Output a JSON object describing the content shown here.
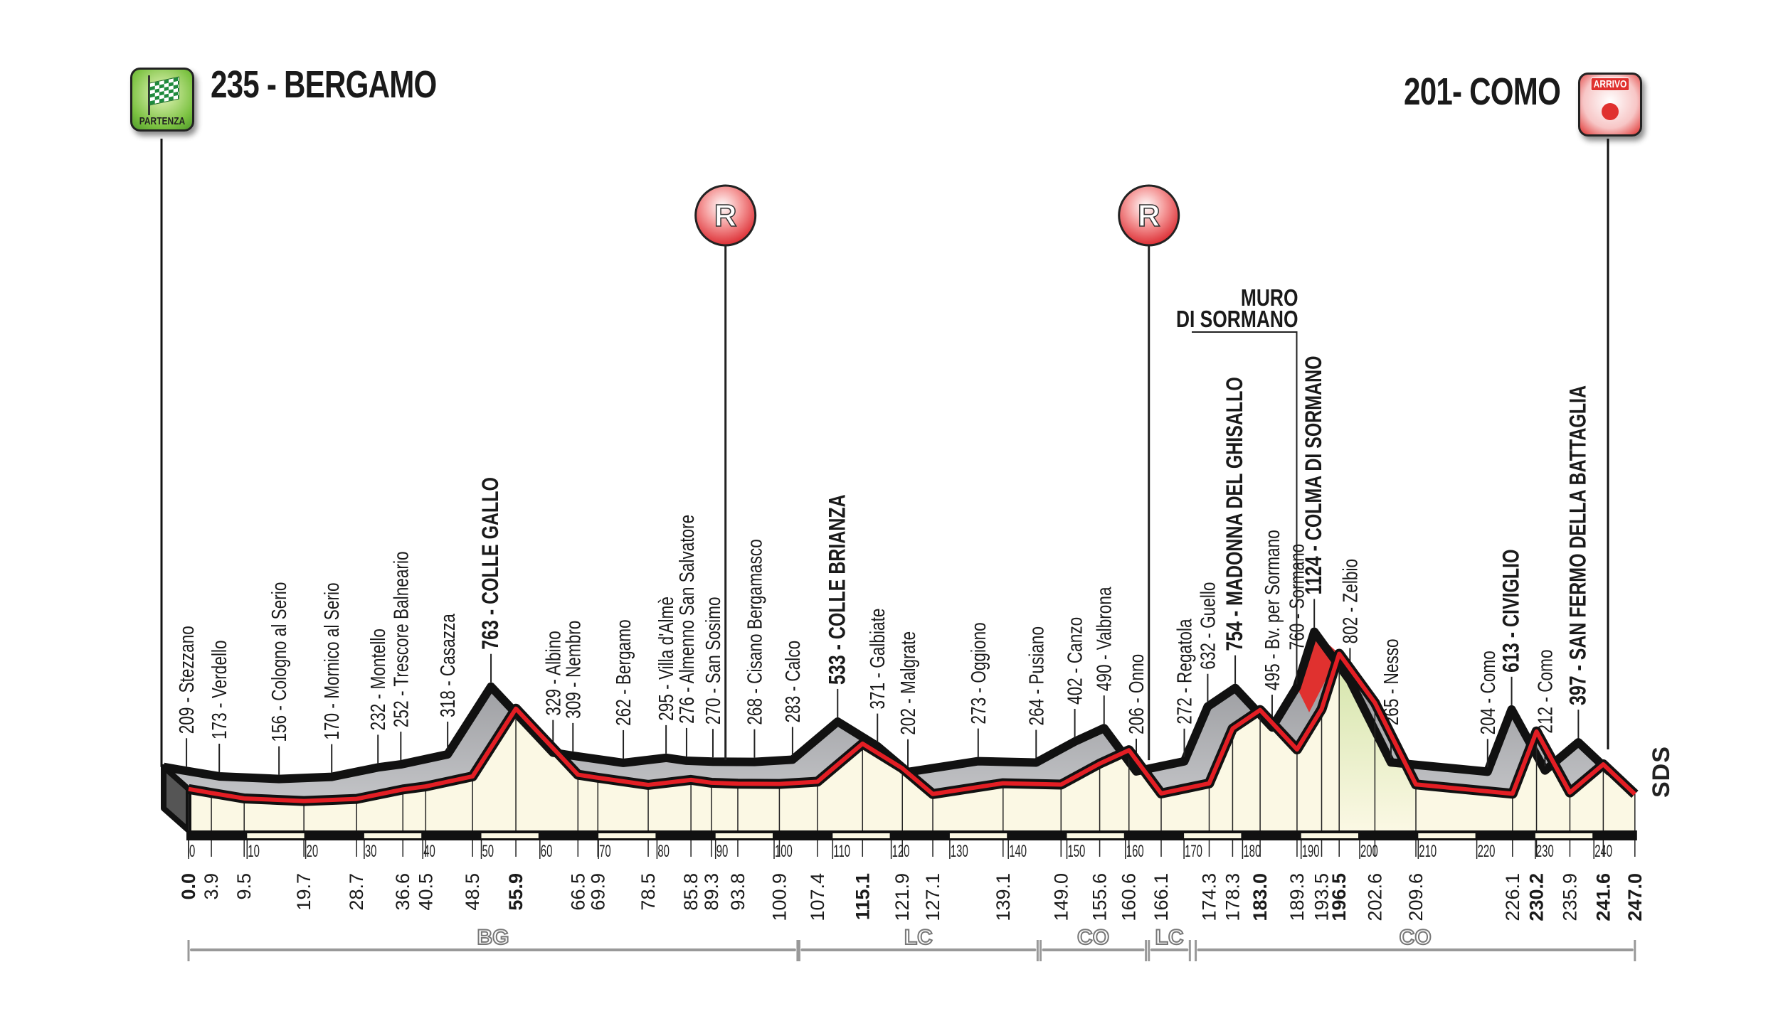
{
  "header": {
    "start_title": "235 - BERGAMO",
    "start_badge": "PARTENZA",
    "finish_title": "201- COMO",
    "finish_badge": "ARRIVO",
    "brand": "SDS"
  },
  "annotations": {
    "feed_zone_label": "R",
    "muro_line1": "MURO",
    "muro_line2": "DI SORMANO"
  },
  "colors": {
    "profile_line": "#e31e24",
    "band": "#a5a6aa",
    "ground": "#fbf8e4",
    "green_descent": "#d9e8b4",
    "feed_zone": "#e0312f"
  },
  "chart_data": {
    "type": "area",
    "xlabel": "",
    "ylabel": "",
    "xlim": [
      0,
      247
    ],
    "x_ticks": [
      0,
      10,
      20,
      30,
      40,
      50,
      60,
      70,
      80,
      90,
      100,
      110,
      120,
      130,
      140,
      150,
      160,
      170,
      180,
      190,
      200,
      210,
      220,
      230,
      240
    ],
    "waypoints": [
      {
        "km": "0.0",
        "elev": 235,
        "label": "",
        "bold": true
      },
      {
        "km": "3.9",
        "elev": 209,
        "label": "209 - Stezzano"
      },
      {
        "km": "9.5",
        "elev": 173,
        "label": "173 - Verdello"
      },
      {
        "km": "19.7",
        "elev": 156,
        "label": "156 - Cologno al Serio"
      },
      {
        "km": "28.7",
        "elev": 170,
        "label": "170 - Mornico al Serio"
      },
      {
        "km": "36.6",
        "elev": 232,
        "label": "232 - Montello"
      },
      {
        "km": "40.5",
        "elev": 252,
        "label": "252 - Trescore Balneario"
      },
      {
        "km": "48.5",
        "elev": 318,
        "label": "318 - Casazza"
      },
      {
        "km": "55.9",
        "elev": 763,
        "label": "763 - COLLE GALLO",
        "bold": true
      },
      {
        "km": "66.5",
        "elev": 329,
        "label": "329 - Albino"
      },
      {
        "km": "69.9",
        "elev": 309,
        "label": "309 - Nembro"
      },
      {
        "km": "78.5",
        "elev": 262,
        "label": "262 - Bergamo"
      },
      {
        "km": "85.8",
        "elev": 295,
        "label": "295 - Villa d'Almè"
      },
      {
        "km": "89.3",
        "elev": 276,
        "label": "276 - Almenno San Salvatore"
      },
      {
        "km": "93.8",
        "elev": 270,
        "label": "270 - San Sosimo"
      },
      {
        "km": "100.9",
        "elev": 268,
        "label": "268 - Cisano Bergamasco"
      },
      {
        "km": "107.4",
        "elev": 283,
        "label": "283 - Calco"
      },
      {
        "km": "115.1",
        "elev": 533,
        "label": "533 - COLLE BRIANZA",
        "bold": true
      },
      {
        "km": "121.9",
        "elev": 371,
        "label": "371 - Galbiate"
      },
      {
        "km": "127.1",
        "elev": 202,
        "label": "202 - Malgrate"
      },
      {
        "km": "139.1",
        "elev": 273,
        "label": "273 - Oggiono"
      },
      {
        "km": "149.0",
        "elev": 264,
        "label": "264 - Pusiano"
      },
      {
        "km": "155.6",
        "elev": 402,
        "label": "402 - Canzo"
      },
      {
        "km": "160.6",
        "elev": 490,
        "label": "490 - Valbrona"
      },
      {
        "km": "166.1",
        "elev": 206,
        "label": "206 - Onno"
      },
      {
        "km": "174.3",
        "elev": 272,
        "label": "272 - Regatola"
      },
      {
        "km": "178.3",
        "elev": 632,
        "label": "632 - Guello"
      },
      {
        "km": "183.0",
        "elev": 754,
        "label": "754 - MADONNA DEL GHISALLO",
        "bold": true
      },
      {
        "km": "189.3",
        "elev": 495,
        "label": "495 - Bv. per Sormano"
      },
      {
        "km": "193.5",
        "elev": 760,
        "label": "760 - Sormano"
      },
      {
        "km": "196.5",
        "elev": 1124,
        "label": "1124 - COLMA DI SORMANO",
        "bold": true
      },
      {
        "km": "202.6",
        "elev": 802,
        "label": "802 - Zelbio"
      },
      {
        "km": "209.6",
        "elev": 265,
        "label": "265 - Nesso"
      },
      {
        "km": "226.1",
        "elev": 204,
        "label": "204 - Como"
      },
      {
        "km": "230.2",
        "elev": 613,
        "label": "613 - CIVIGLIO",
        "bold": true
      },
      {
        "km": "235.9",
        "elev": 212,
        "label": "212 - Como"
      },
      {
        "km": "241.6",
        "elev": 397,
        "label": "397 - SAN FERMO DELLA BATTAGLIA",
        "bold": true
      },
      {
        "km": "247.0",
        "elev": 201,
        "label": "",
        "bold": true
      }
    ],
    "feed_zones_km": [
      91.7,
      164.0
    ],
    "muro_segment_km": [
      193.5,
      196.5
    ],
    "provinces": [
      {
        "code": "BG",
        "from_km": 0,
        "to_km": 104
      },
      {
        "code": "LC",
        "from_km": 104.3,
        "to_km": 145
      },
      {
        "code": "CO",
        "from_km": 145.5,
        "to_km": 163.5
      },
      {
        "code": "LC",
        "from_km": 164,
        "to_km": 171
      },
      {
        "code": "CO",
        "from_km": 172,
        "to_km": 247
      }
    ]
  }
}
